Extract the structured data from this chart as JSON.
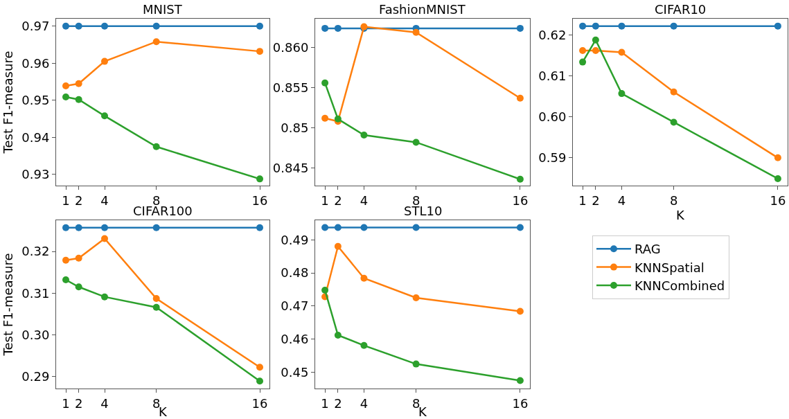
{
  "chart_data": [
    {
      "type": "line",
      "title": "MNIST",
      "ylabel": "Test F1-measure",
      "x": [
        1,
        2,
        4,
        8,
        16
      ],
      "xlim": [
        0.25,
        16.75
      ],
      "xticks": [
        1,
        2,
        4,
        8,
        16
      ],
      "ylim": [
        0.927,
        0.972
      ],
      "yticks": [
        0.93,
        0.94,
        0.95,
        0.96,
        0.97
      ],
      "marker": "circle",
      "legend": "bottom right",
      "grid": false,
      "series": [
        {
          "name": "RAG",
          "color": "#1f77b4",
          "values": [
            0.97,
            0.97,
            0.97,
            0.97,
            0.97
          ]
        },
        {
          "name": "KNNSpatial",
          "color": "#ff7f0e",
          "values": [
            0.9539,
            0.9545,
            0.9605,
            0.9658,
            0.9632
          ]
        },
        {
          "name": "KNNCombined",
          "color": "#2ca02c",
          "values": [
            0.9509,
            0.9502,
            0.9458,
            0.9375,
            0.9288
          ]
        }
      ]
    },
    {
      "type": "line",
      "title": "FashionMNIST",
      "x": [
        1,
        2,
        4,
        8,
        16
      ],
      "xlim": [
        0.25,
        16.75
      ],
      "xticks": [
        1,
        2,
        4,
        8,
        16
      ],
      "ylim": [
        0.8428,
        0.8636
      ],
      "yticks": [
        0.845,
        0.85,
        {
          "value": 0.855,
          "label": "0.855"
        },
        {
          "value": 0.86,
          "label": "0.860"
        }
      ],
      "marker": "circle",
      "grid": false,
      "series": [
        {
          "color": "#1f77b4",
          "values": [
            0.8624,
            0.8624,
            0.8624,
            0.8624,
            0.8624
          ]
        },
        {
          "color": "#ff7f0e",
          "values": [
            0.8512,
            0.8508,
            0.8626,
            0.8619,
            0.8537
          ]
        },
        {
          "color": "#2ca02c",
          "values": [
            0.8556,
            0.8511,
            0.8491,
            0.8482,
            0.8436
          ]
        }
      ]
    },
    {
      "type": "line",
      "title": "CIFAR10",
      "xlabel": "K",
      "x": [
        1,
        2,
        4,
        8,
        16
      ],
      "xlim": [
        0.25,
        16.75
      ],
      "xticks": [
        1,
        2,
        4,
        8,
        16
      ],
      "ylim": [
        0.5832,
        0.624
      ],
      "yticks": [
        0.59,
        {
          "value": 0.6,
          "label": "0.60"
        },
        0.61,
        0.62
      ],
      "marker": "circle",
      "grid": false,
      "series": [
        {
          "color": "#1f77b4",
          "values": [
            0.6222,
            0.6222,
            0.6222,
            0.6222,
            0.6222
          ]
        },
        {
          "color": "#ff7f0e",
          "values": [
            0.6162,
            0.6162,
            0.6158,
            0.6061,
            0.59
          ]
        },
        {
          "color": "#2ca02c",
          "values": [
            0.6134,
            0.6188,
            0.6057,
            0.5987,
            0.5849
          ]
        }
      ]
    },
    {
      "type": "line",
      "title": "CIFAR100",
      "xlabel": "K",
      "ylabel": "Test F1-measure",
      "x": [
        1,
        2,
        4,
        8,
        16
      ],
      "xlim": [
        0.25,
        16.75
      ],
      "xticks": [
        1,
        2,
        4,
        8,
        16
      ],
      "ylim": [
        0.2871,
        0.3275
      ],
      "yticks": [
        0.29,
        {
          "value": 0.3,
          "label": "0.30"
        },
        0.31,
        0.32
      ],
      "marker": "circle",
      "grid": false,
      "series": [
        {
          "color": "#1f77b4",
          "values": [
            0.3257,
            0.3257,
            0.3257,
            0.3257,
            0.3257
          ]
        },
        {
          "color": "#ff7f0e",
          "values": [
            0.3179,
            0.3184,
            0.3231,
            0.3087,
            0.2922
          ]
        },
        {
          "color": "#2ca02c",
          "values": [
            0.3132,
            0.3115,
            0.3091,
            0.3066,
            0.2889
          ]
        }
      ]
    },
    {
      "type": "line",
      "title": "STL10",
      "xlabel": "K",
      "x": [
        1,
        2,
        4,
        8,
        16
      ],
      "xlim": [
        0.25,
        16.75
      ],
      "xticks": [
        1,
        2,
        4,
        8,
        16
      ],
      "ylim": [
        0.4451,
        0.4959
      ],
      "yticks": [
        0.45,
        0.46,
        0.47,
        0.48,
        0.49
      ],
      "marker": "circle",
      "grid": false,
      "series": [
        {
          "color": "#1f77b4",
          "values": [
            0.4937,
            0.4937,
            0.4937,
            0.4937,
            0.4937
          ]
        },
        {
          "color": "#ff7f0e",
          "values": [
            0.4728,
            0.488,
            0.4784,
            0.4725,
            0.4684
          ]
        },
        {
          "color": "#2ca02c",
          "values": [
            0.4748,
            0.4612,
            0.4581,
            0.4525,
            0.4475
          ]
        }
      ]
    }
  ]
}
